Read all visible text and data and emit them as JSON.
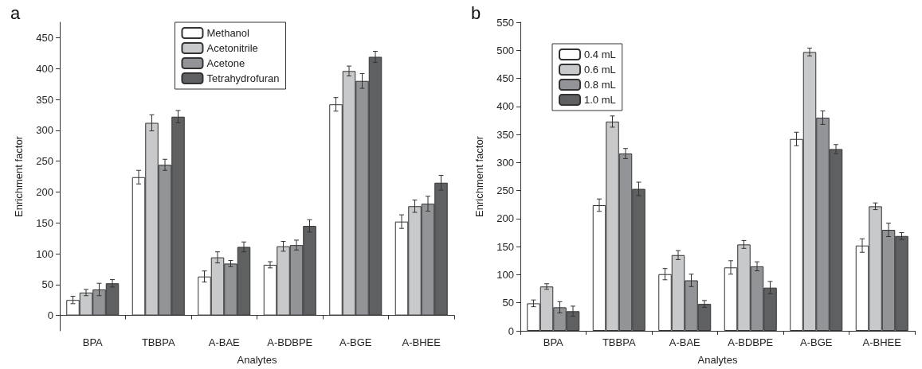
{
  "chart_data": [
    {
      "type": "bar",
      "title": "a",
      "xlabel": "Analytes",
      "ylabel": "Enrichment factor",
      "categories": [
        "BPA",
        "TBBPA",
        "A-BAE",
        "A-BDBPE",
        "A-BGE",
        "A-BHEE"
      ],
      "ylim": [
        -25,
        475
      ],
      "yticks": [
        0,
        50,
        100,
        150,
        200,
        250,
        300,
        350,
        400,
        450
      ],
      "grid": false,
      "legend": "top",
      "series": [
        {
          "name": "Methanol",
          "color": "#ffffff",
          "values": [
            25,
            224,
            63,
            82,
            342,
            152
          ],
          "errors": [
            6,
            11,
            9,
            5,
            11,
            11
          ]
        },
        {
          "name": "Acetonitrile",
          "color": "#c8c9cb",
          "values": [
            37,
            312,
            94,
            112,
            396,
            177
          ],
          "errors": [
            5,
            13,
            9,
            8,
            8,
            10
          ]
        },
        {
          "name": "Acetone",
          "color": "#929497",
          "values": [
            42,
            244,
            84,
            114,
            380,
            181
          ],
          "errors": [
            10,
            9,
            5,
            8,
            12,
            12
          ]
        },
        {
          "name": "Tetrahydrofuran",
          "color": "#5f6062",
          "values": [
            52,
            322,
            111,
            145,
            419,
            215
          ],
          "errors": [
            6,
            10,
            8,
            10,
            9,
            12
          ]
        }
      ]
    },
    {
      "type": "bar",
      "title": "b",
      "xlabel": "Analytes",
      "ylabel": "Enrichment factor",
      "categories": [
        "BPA",
        "TBBPA",
        "A-BAE",
        "A-BDBPE",
        "A-BGE",
        "A-BHEE"
      ],
      "ylim": [
        0,
        550
      ],
      "yticks": [
        0,
        50,
        100,
        150,
        200,
        250,
        300,
        350,
        400,
        450,
        500,
        550
      ],
      "grid": false,
      "legend": "top left",
      "series": [
        {
          "name": "0.4 mL",
          "color": "#ffffff",
          "values": [
            49,
            224,
            101,
            113,
            342,
            152
          ],
          "errors": [
            6,
            11,
            10,
            12,
            12,
            12
          ]
        },
        {
          "name": "0.6 mL",
          "color": "#c8c9cb",
          "values": [
            79,
            373,
            135,
            154,
            497,
            222
          ],
          "errors": [
            5,
            10,
            8,
            7,
            7,
            6
          ]
        },
        {
          "name": "0.8 mL",
          "color": "#929497",
          "values": [
            42,
            316,
            90,
            115,
            380,
            180
          ],
          "errors": [
            10,
            9,
            11,
            8,
            12,
            12
          ]
        },
        {
          "name": "1.0 mL",
          "color": "#5f6062",
          "values": [
            35,
            253,
            48,
            77,
            324,
            169
          ],
          "errors": [
            9,
            12,
            6,
            11,
            8,
            6
          ]
        }
      ]
    }
  ]
}
